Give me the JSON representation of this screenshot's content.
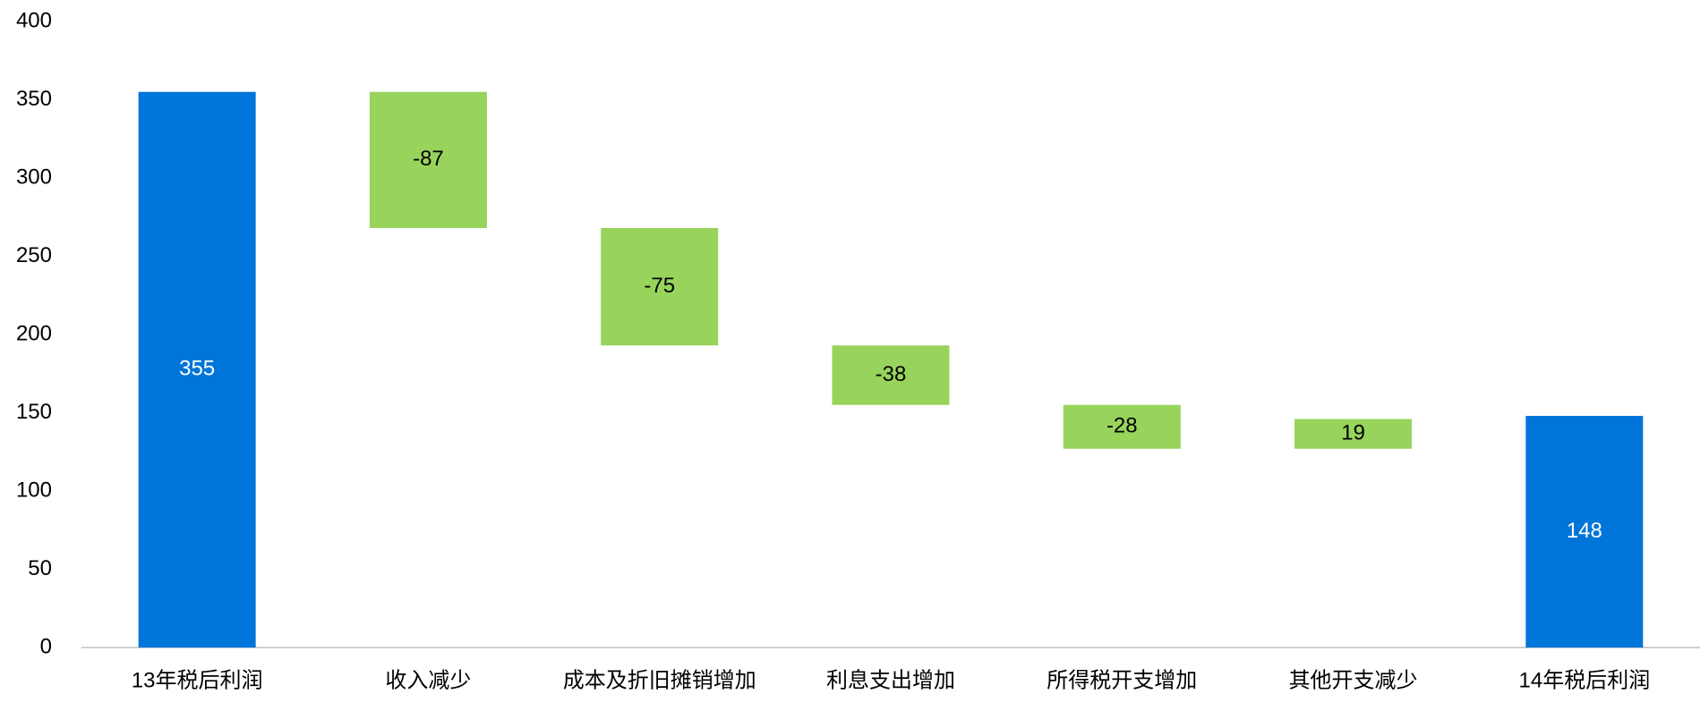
{
  "chart_data": {
    "type": "waterfall",
    "categories": [
      "13年税后利润",
      "收入减少",
      "成本及折旧摊销增加",
      "利息支出增加",
      "所得税开支增加",
      "其他开支减少",
      "14年税后利润"
    ],
    "values": [
      355,
      -87,
      -75,
      -38,
      -28,
      19,
      148
    ],
    "color": "#0075d9",
    "delta_color": "#98d45c",
    "ylim": [
      0,
      400
    ],
    "yticks": [
      0,
      50,
      100,
      150,
      200,
      250,
      300,
      350,
      400
    ],
    "grid": false
  }
}
